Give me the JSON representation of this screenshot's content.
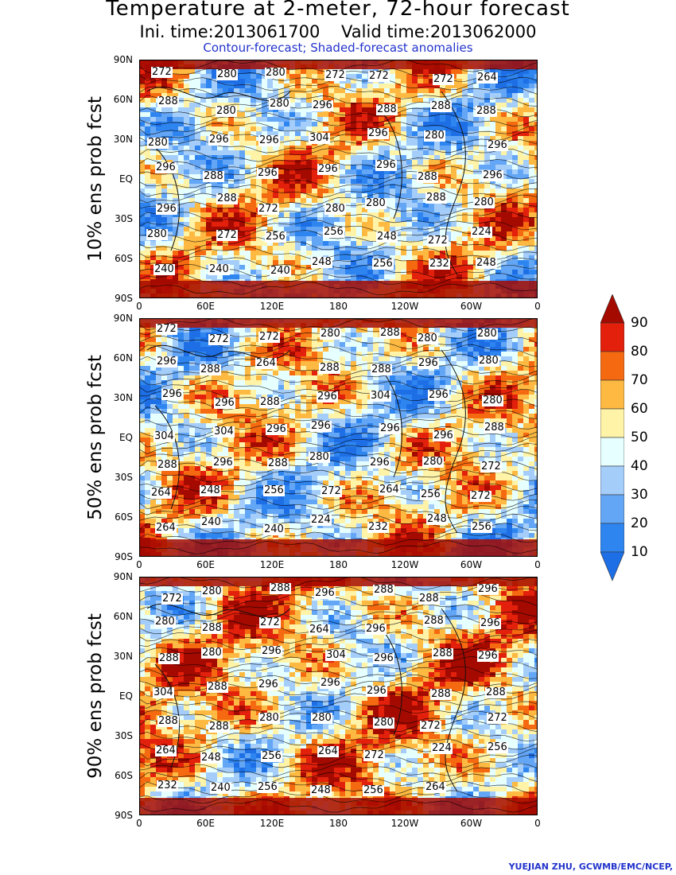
{
  "header": {
    "title": "Temperature at 2-meter, 72-hour forecast",
    "subtitle": "Ini. time:2013061700    Valid time:2013062000",
    "note": "Contour-forecast; Shaded-forecast anomalies"
  },
  "credit": "YUEJIAN ZHU, GCWMB/EMC/NCEP,",
  "axes": {
    "lat_ticks": [
      "90N",
      "60N",
      "30N",
      "EQ",
      "30S",
      "60S",
      "90S"
    ],
    "lon_ticks": [
      "0",
      "60E",
      "120E",
      "180",
      "120W",
      "60W",
      "0"
    ]
  },
  "panels": [
    {
      "label": "10% ens prob fcst",
      "contour_labels": [
        "272",
        "280",
        "280",
        "272",
        "272",
        "272",
        "264",
        "288",
        "280",
        "280",
        "296",
        "288",
        "288",
        "288",
        "280",
        "296",
        "296",
        "304",
        "296",
        "280",
        "296",
        "296",
        "288",
        "296",
        "296",
        "296",
        "288",
        "296",
        "296",
        "288",
        "272",
        "280",
        "280",
        "288",
        "280",
        "280",
        "272",
        "256",
        "256",
        "248",
        "272",
        "224",
        "240",
        "240",
        "240",
        "248",
        "256",
        "232",
        "248"
      ]
    },
    {
      "label": "50% ens prob fcst",
      "contour_labels": [
        "272",
        "272",
        "272",
        "280",
        "288",
        "280",
        "280",
        "296",
        "288",
        "264",
        "288",
        "288",
        "296",
        "280",
        "296",
        "296",
        "288",
        "296",
        "304",
        "296",
        "280",
        "304",
        "304",
        "296",
        "296",
        "296",
        "296",
        "288",
        "288",
        "296",
        "288",
        "280",
        "296",
        "280",
        "272",
        "264",
        "248",
        "256",
        "272",
        "264",
        "256",
        "272",
        "264",
        "240",
        "240",
        "224",
        "232",
        "248",
        "256"
      ]
    },
    {
      "label": "90% ens prob fcst",
      "contour_labels": [
        "272",
        "280",
        "288",
        "296",
        "288",
        "288",
        "296",
        "280",
        "288",
        "272",
        "264",
        "296",
        "288",
        "296",
        "288",
        "280",
        "296",
        "304",
        "296",
        "288",
        "296",
        "304",
        "288",
        "296",
        "296",
        "296",
        "288",
        "288",
        "288",
        "288",
        "280",
        "280",
        "280",
        "272",
        "272",
        "264",
        "248",
        "256",
        "264",
        "272",
        "224",
        "256",
        "232",
        "240",
        "256",
        "248",
        "256",
        "264"
      ]
    }
  ],
  "colorbar": {
    "levels": [
      "10",
      "20",
      "30",
      "40",
      "50",
      "60",
      "70",
      "80",
      "90"
    ],
    "colors": [
      "#1e6fe6",
      "#2e85f0",
      "#64a6f6",
      "#a4cdfa",
      "#e6ffff",
      "#fff3a8",
      "#fdb941",
      "#f56a10",
      "#e2200c",
      "#a50a00"
    ]
  }
}
